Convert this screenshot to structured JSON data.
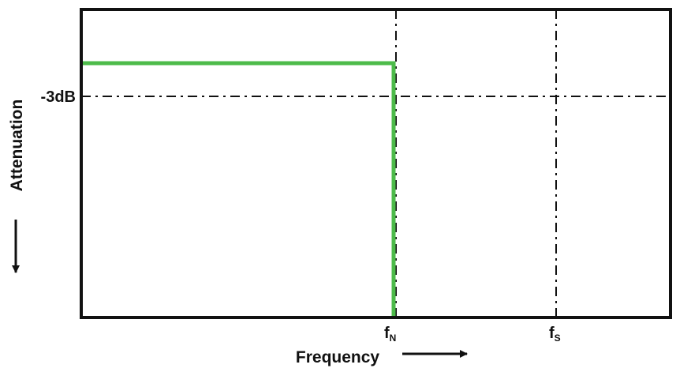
{
  "diagram": {
    "y_axis_label": "Attenuation",
    "y_marker_label": "-3dB",
    "x_axis_label": "Frequency",
    "x_marker_n": {
      "base": "f",
      "sub": "N"
    },
    "x_marker_s": {
      "base": "f",
      "sub": "S"
    },
    "colors": {
      "response_line": "#4dbb4a",
      "frame": "#111111",
      "reference_lines": "#111111"
    }
  }
}
